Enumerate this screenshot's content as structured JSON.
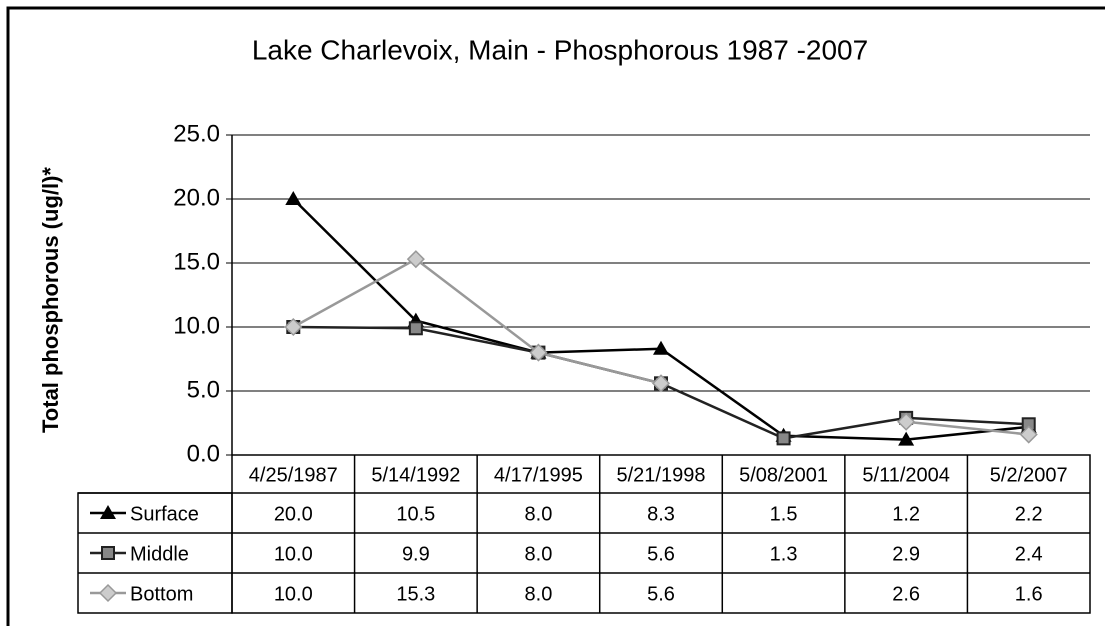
{
  "chart_data": {
    "type": "line",
    "title": "Lake Charlevoix, Main - Phosphorous 1987 -2007",
    "y_label": "Total phosphorous (ug/l)*",
    "categories": [
      "4/25/1987",
      "5/14/1992",
      "4/17/1995",
      "5/21/1998",
      "5/08/2001",
      "5/11/2004",
      "5/2/2007"
    ],
    "series": [
      {
        "name": "Surface",
        "color": "#000000",
        "marker": "triangle",
        "values": [
          20.0,
          10.5,
          8.0,
          8.3,
          1.5,
          1.2,
          2.2
        ],
        "value_labels": [
          "20.0",
          "10.5",
          "8.0",
          "8.3",
          "1.5",
          "1.2",
          "2.2"
        ]
      },
      {
        "name": "Middle",
        "color": "#222222",
        "marker": "square",
        "values": [
          10.0,
          9.9,
          8.0,
          5.6,
          1.3,
          2.9,
          2.4
        ],
        "value_labels": [
          "10.0",
          "9.9",
          "8.0",
          "5.6",
          "1.3",
          "2.9",
          "2.4"
        ]
      },
      {
        "name": "Bottom",
        "color": "#999999",
        "marker": "diamond",
        "values": [
          10.0,
          15.3,
          8.0,
          5.6,
          null,
          2.6,
          1.6
        ],
        "value_labels": [
          "10.0",
          "15.3",
          "8.0",
          "5.6",
          null,
          "2.6",
          "1.6"
        ]
      }
    ],
    "ylim": [
      0,
      25
    ],
    "yticks": [
      {
        "value": 0,
        "label": "0.0"
      },
      {
        "value": 5,
        "label": "5.0"
      },
      {
        "value": 10,
        "label": "10.0"
      },
      {
        "value": 15,
        "label": "15.0"
      },
      {
        "value": 20,
        "label": "20.0"
      },
      {
        "value": 25,
        "label": "25.0"
      }
    ],
    "grid": true
  }
}
